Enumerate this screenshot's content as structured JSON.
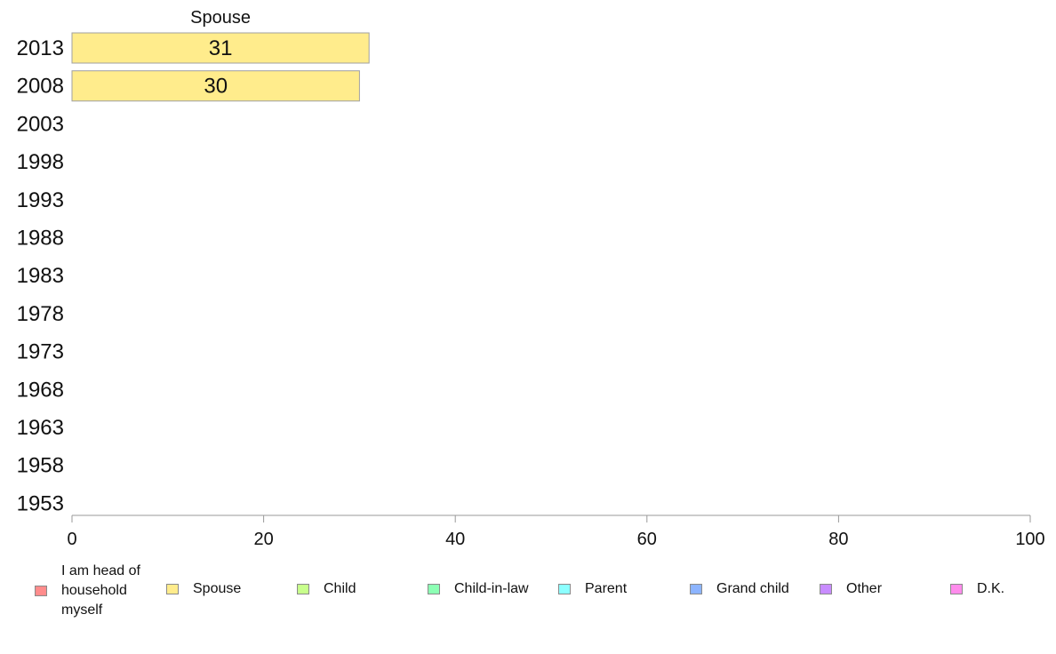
{
  "chart_data": {
    "type": "bar",
    "orientation": "horizontal",
    "stacked": true,
    "categories": [
      "2013",
      "2008",
      "2003",
      "1998",
      "1993",
      "1988",
      "1983",
      "1978",
      "1973",
      "1968",
      "1963",
      "1958",
      "1953"
    ],
    "series": [
      {
        "name": "I am head of household myself",
        "color": "#ff8c8c",
        "values": [
          null,
          null,
          null,
          null,
          null,
          null,
          null,
          null,
          null,
          null,
          null,
          null,
          null
        ]
      },
      {
        "name": "Spouse",
        "color": "#ffec8c",
        "values": [
          31,
          30,
          null,
          null,
          null,
          null,
          null,
          null,
          null,
          null,
          null,
          null,
          null
        ]
      },
      {
        "name": "Child",
        "color": "#c8ff8c",
        "values": [
          null,
          null,
          null,
          null,
          null,
          null,
          null,
          null,
          null,
          null,
          null,
          null,
          null
        ]
      },
      {
        "name": "Child-in-law",
        "color": "#8cffb4",
        "values": [
          null,
          null,
          null,
          null,
          null,
          null,
          null,
          null,
          null,
          null,
          null,
          null,
          null
        ]
      },
      {
        "name": "Parent",
        "color": "#8cffff",
        "values": [
          null,
          null,
          null,
          null,
          null,
          null,
          null,
          null,
          null,
          null,
          null,
          null,
          null
        ]
      },
      {
        "name": "Grand child",
        "color": "#8cb4ff",
        "values": [
          null,
          null,
          null,
          null,
          null,
          null,
          null,
          null,
          null,
          null,
          null,
          null,
          null
        ]
      },
      {
        "name": "Other",
        "color": "#c88cff",
        "values": [
          null,
          null,
          null,
          null,
          null,
          null,
          null,
          null,
          null,
          null,
          null,
          null,
          null
        ]
      },
      {
        "name": "D.K.",
        "color": "#ff8cec",
        "values": [
          null,
          null,
          null,
          null,
          null,
          null,
          null,
          null,
          null,
          null,
          null,
          null,
          null
        ]
      }
    ],
    "header_label": "Spouse",
    "xlim": [
      0,
      100
    ],
    "xticks": [
      0,
      20,
      40,
      60,
      80,
      100
    ],
    "grid": false,
    "legend_position": "bottom"
  },
  "legend": {
    "items": [
      {
        "label": "I am head of\nhousehold\nmyself",
        "color": "#ff8c8c"
      },
      {
        "label": "Spouse",
        "color": "#ffec8c"
      },
      {
        "label": "Child",
        "color": "#c8ff8c"
      },
      {
        "label": "Child-in-law",
        "color": "#8cffb4"
      },
      {
        "label": "Parent",
        "color": "#8cffff"
      },
      {
        "label": "Grand child",
        "color": "#8cb4ff"
      },
      {
        "label": "Other",
        "color": "#c88cff"
      },
      {
        "label": "D.K.",
        "color": "#ff8cec"
      }
    ]
  }
}
